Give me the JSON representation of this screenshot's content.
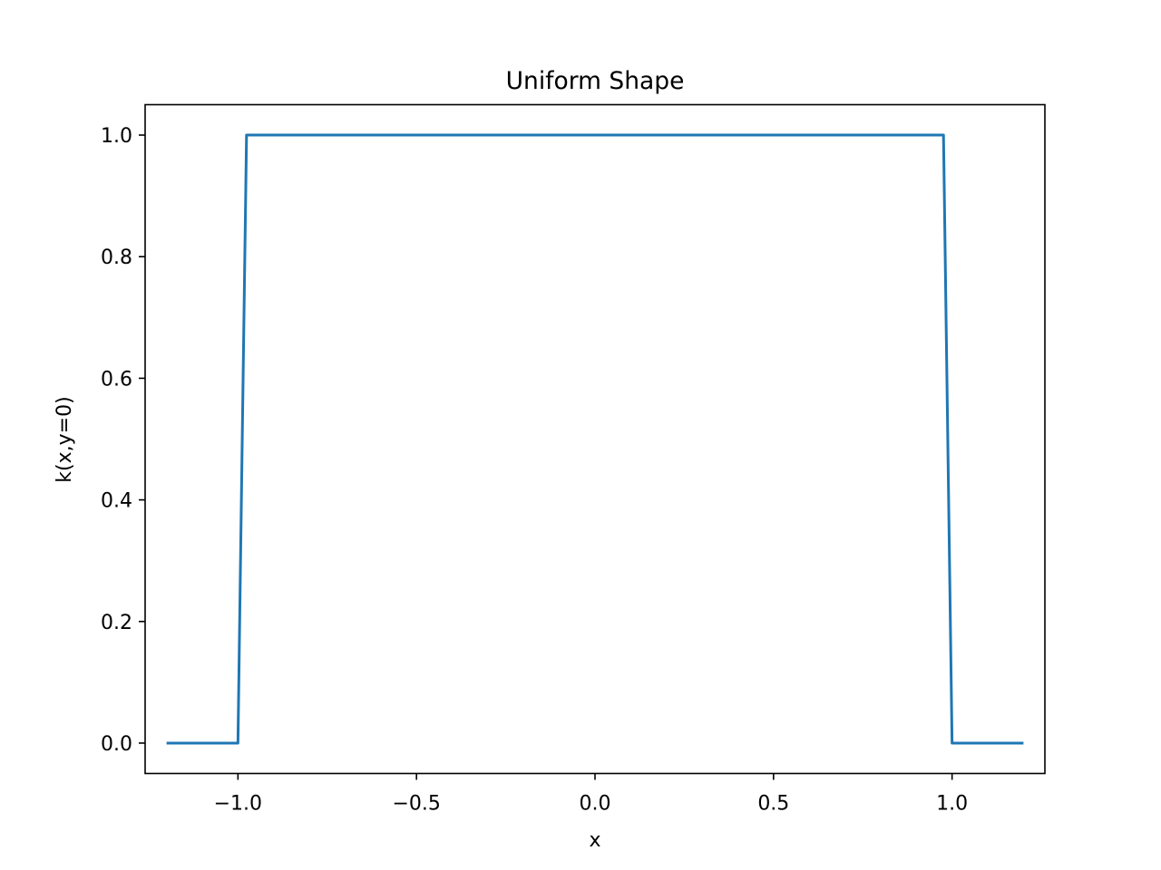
{
  "chart_data": {
    "type": "line",
    "title": "Uniform Shape",
    "xlabel": "x",
    "ylabel": "k(x,y=0)",
    "xlim": [
      -1.26,
      1.26
    ],
    "ylim": [
      -0.05,
      1.05
    ],
    "xticks": [
      -1.0,
      -0.5,
      0.0,
      0.5,
      1.0
    ],
    "xtick_labels": [
      "−1.0",
      "−0.5",
      "0.0",
      "0.5",
      "1.0"
    ],
    "yticks": [
      0.0,
      0.2,
      0.4,
      0.6,
      0.8,
      1.0
    ],
    "ytick_labels": [
      "0.0",
      "0.2",
      "0.4",
      "0.6",
      "0.8",
      "1.0"
    ],
    "grid": false,
    "series": [
      {
        "color": "#1f77b4",
        "x": [
          -1.2,
          -1.0,
          -0.976,
          0.976,
          1.0,
          1.2
        ],
        "y": [
          0.0,
          0.0,
          1.0,
          1.0,
          0.0,
          0.0
        ]
      }
    ]
  }
}
